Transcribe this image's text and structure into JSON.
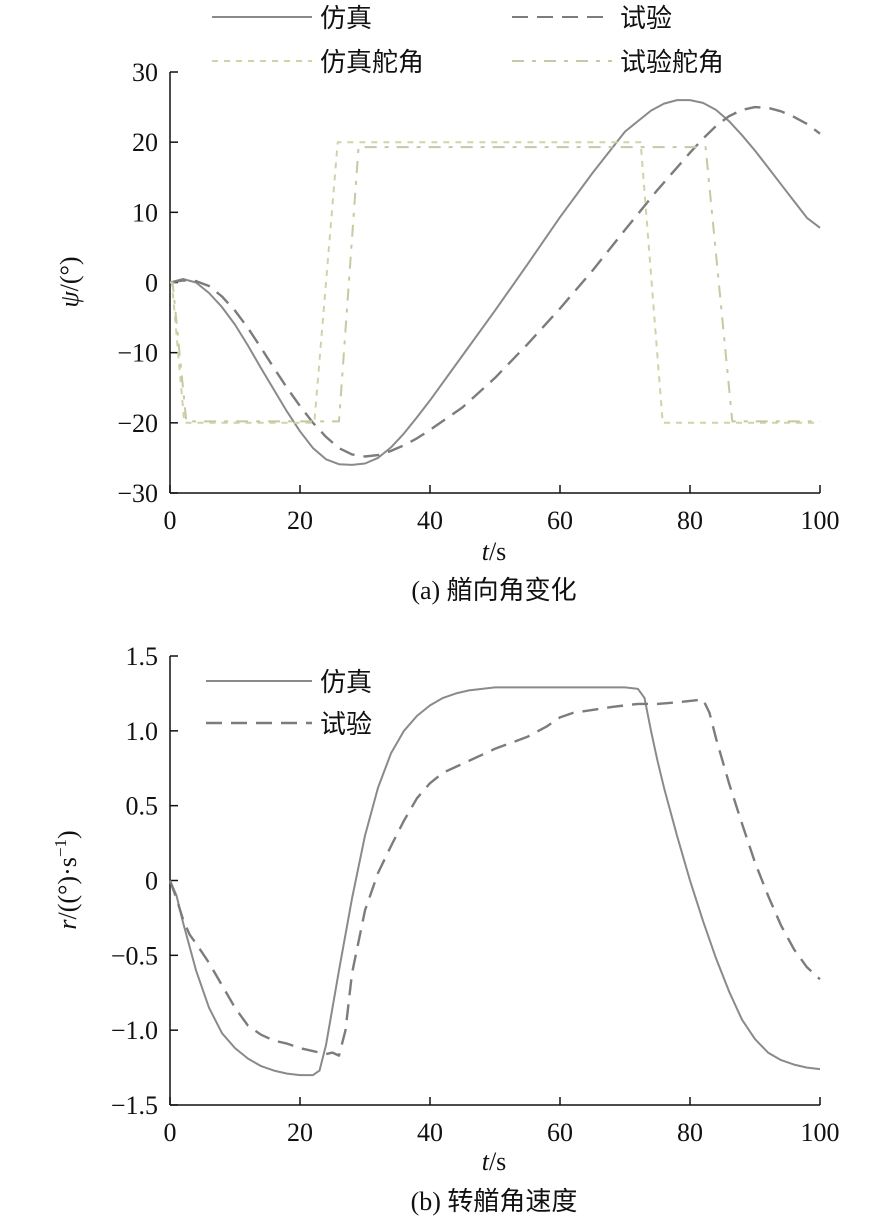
{
  "figure": {
    "colors": {
      "axis": "#111111",
      "sim": "#8a8a8a",
      "exp": "#7c7c7c",
      "sim_rudder": "#d2d2a6",
      "exp_rudder": "#c8c8a2"
    }
  },
  "chart_data": [
    {
      "id": "a",
      "type": "line",
      "caption": "(a) 艏向角变化",
      "xlabel_italic": "t",
      "xlabel_unit": "/s",
      "ylabel_italic": "ψ",
      "ylabel_unit": "/(°)",
      "xlim": [
        0,
        100
      ],
      "ylim": [
        -30,
        30
      ],
      "xticks": [
        0,
        20,
        40,
        60,
        80,
        100
      ],
      "yticks": [
        -30,
        -20,
        -10,
        0,
        10,
        20,
        30
      ],
      "ytick_labels": [
        "−30",
        "−20",
        "−10",
        "0",
        "10",
        "20",
        "30"
      ],
      "legend": "top, two columns",
      "series": [
        {
          "name": "仿真",
          "style": "solid",
          "color_key": "sim",
          "x": [
            0,
            2,
            4,
            6,
            8,
            10,
            12,
            14,
            16,
            18,
            20,
            22,
            24,
            26,
            28,
            30,
            32,
            34,
            36,
            38,
            40,
            45,
            50,
            55,
            60,
            65,
            70,
            74,
            76,
            78,
            80,
            82,
            84,
            86,
            88,
            90,
            92,
            94,
            96,
            98,
            100
          ],
          "y": [
            0,
            0.5,
            0,
            -1.5,
            -3.5,
            -6,
            -9,
            -12.2,
            -15.3,
            -18.4,
            -21.2,
            -23.6,
            -25.2,
            -25.9,
            -26,
            -25.8,
            -25,
            -23.5,
            -21.5,
            -19.2,
            -16.8,
            -10.4,
            -4,
            2.6,
            9.3,
            15.6,
            21.5,
            24.5,
            25.5,
            26,
            26,
            25.6,
            24.6,
            23,
            21,
            18.8,
            16.4,
            14,
            11.6,
            9.2,
            7.8
          ]
        },
        {
          "name": "试验",
          "style": "dashed",
          "color_key": "exp",
          "x": [
            0,
            2,
            4,
            6,
            8,
            10,
            12,
            14,
            16,
            18,
            20,
            22,
            24,
            26,
            28,
            30,
            32,
            34,
            36,
            38,
            40,
            45,
            50,
            55,
            60,
            65,
            70,
            75,
            80,
            82,
            84,
            86,
            88,
            90,
            92,
            94,
            96,
            98,
            100
          ],
          "y": [
            0,
            0.3,
            0.2,
            -0.5,
            -2,
            -4,
            -6.5,
            -9.3,
            -12.2,
            -15,
            -17.6,
            -20,
            -22,
            -23.6,
            -24.5,
            -24.8,
            -24.6,
            -24,
            -23.2,
            -22.2,
            -21,
            -17.8,
            -13.6,
            -8.8,
            -3.7,
            1.7,
            7.5,
            13.2,
            18.5,
            20.5,
            22.3,
            23.7,
            24.6,
            25,
            24.9,
            24.4,
            23.6,
            22.6,
            21.2
          ]
        },
        {
          "name": "仿真舵角",
          "style": "dashed",
          "color_key": "sim_rudder",
          "x": [
            0,
            0.3,
            2.2,
            22.2,
            25.8,
            72.4,
            75.8,
            100
          ],
          "y": [
            0,
            0,
            -20,
            -20,
            20,
            20,
            -20,
            -20
          ]
        },
        {
          "name": "试验舵角",
          "style": "dashed",
          "color_key": "exp_rudder",
          "x": [
            0,
            0.4,
            2.5,
            26,
            29,
            82.4,
            86.5,
            100
          ],
          "y": [
            0,
            0,
            -19.8,
            -19.8,
            19.3,
            19.3,
            -19.8,
            -19.8
          ]
        }
      ]
    },
    {
      "id": "b",
      "type": "line",
      "caption": "(b) 转艏角速度",
      "xlabel_italic": "t",
      "xlabel_unit": "/s",
      "ylabel_italic": "r",
      "ylabel_unit": "/((°)·s",
      "ylabel_sup": "−1",
      "ylabel_close": ")",
      "xlim": [
        0,
        100
      ],
      "ylim": [
        -1.5,
        1.5
      ],
      "xticks": [
        0,
        20,
        40,
        60,
        80,
        100
      ],
      "yticks": [
        -1.5,
        -1.0,
        -0.5,
        0,
        0.5,
        1.0,
        1.5
      ],
      "ytick_labels": [
        "−1.5",
        "−1.0",
        "−0.5",
        "0",
        "0.5",
        "1.0",
        "1.5"
      ],
      "legend": "top-left",
      "series": [
        {
          "name": "仿真",
          "style": "solid",
          "color_key": "sim",
          "x": [
            0,
            1,
            2,
            4,
            6,
            8,
            10,
            12,
            14,
            16,
            18,
            20,
            22,
            23,
            24,
            26,
            28,
            30,
            32,
            34,
            36,
            38,
            40,
            42,
            44,
            46,
            48,
            50,
            55,
            60,
            65,
            70,
            72,
            73,
            74,
            75,
            76,
            78,
            80,
            82,
            84,
            86,
            88,
            90,
            92,
            94,
            96,
            98,
            100
          ],
          "y": [
            0,
            -0.1,
            -0.28,
            -0.6,
            -0.85,
            -1.02,
            -1.12,
            -1.19,
            -1.24,
            -1.27,
            -1.29,
            -1.3,
            -1.3,
            -1.27,
            -1.1,
            -0.6,
            -0.12,
            0.3,
            0.62,
            0.85,
            1.0,
            1.1,
            1.17,
            1.22,
            1.25,
            1.27,
            1.28,
            1.29,
            1.29,
            1.29,
            1.29,
            1.29,
            1.28,
            1.22,
            1.0,
            0.8,
            0.62,
            0.3,
            0.0,
            -0.27,
            -0.52,
            -0.74,
            -0.93,
            -1.06,
            -1.15,
            -1.2,
            -1.23,
            -1.25,
            -1.26
          ]
        },
        {
          "name": "试验",
          "style": "dashed",
          "color_key": "exp",
          "x": [
            0,
            1,
            2,
            3,
            4,
            6,
            8,
            10,
            12,
            14,
            16,
            18,
            20,
            22,
            24,
            25,
            26,
            27,
            28,
            30,
            32,
            34,
            36,
            38,
            40,
            42,
            45,
            48,
            50,
            55,
            58,
            60,
            62,
            65,
            68,
            70,
            72,
            75,
            78,
            80,
            82,
            83,
            84,
            86,
            88,
            90,
            92,
            94,
            96,
            98,
            100
          ],
          "y": [
            0,
            -0.12,
            -0.26,
            -0.36,
            -0.42,
            -0.55,
            -0.7,
            -0.85,
            -0.97,
            -1.03,
            -1.07,
            -1.09,
            -1.12,
            -1.14,
            -1.16,
            -1.15,
            -1.17,
            -1.0,
            -0.62,
            -0.2,
            0.05,
            0.23,
            0.4,
            0.55,
            0.65,
            0.72,
            0.78,
            0.84,
            0.88,
            0.96,
            1.03,
            1.09,
            1.12,
            1.14,
            1.16,
            1.17,
            1.18,
            1.18,
            1.19,
            1.2,
            1.21,
            1.12,
            0.95,
            0.65,
            0.38,
            0.12,
            -0.1,
            -0.3,
            -0.46,
            -0.58,
            -0.66
          ]
        }
      ]
    }
  ]
}
